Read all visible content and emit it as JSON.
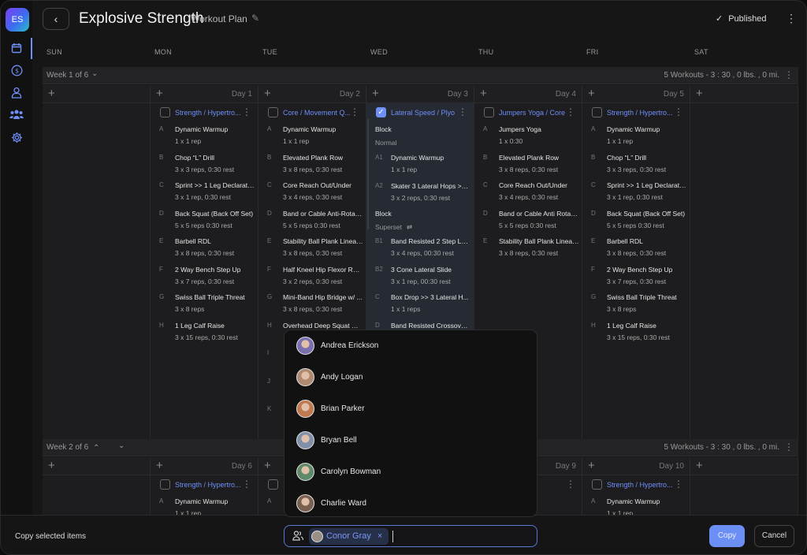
{
  "app": {
    "logo": "ES",
    "title": "Explosive Strength",
    "subtitle": "Workout Plan",
    "status": "Published"
  },
  "sidebar": {
    "items": [
      {
        "icon": "calendar-icon"
      },
      {
        "icon": "dollar-icon"
      },
      {
        "icon": "user-icon"
      },
      {
        "icon": "group-icon"
      },
      {
        "icon": "gear-icon"
      }
    ]
  },
  "days": [
    "SUN",
    "MON",
    "TUE",
    "WED",
    "THU",
    "FRI",
    "SAT"
  ],
  "weeks": [
    {
      "label": "Week 1 of 6",
      "summary": "5 Workouts - 3 : 30 ,  0 lbs. ,  0 mi.",
      "day_labels": [
        "",
        "Day 1",
        "Day 2",
        "Day 3",
        "Day 4",
        "Day 5",
        ""
      ]
    },
    {
      "label": "Week 2 of 6",
      "summary": "5 Workouts - 3 : 30 ,  0 lbs. ,  0 mi.",
      "day_labels": [
        "",
        "Day 6",
        "",
        "",
        "Day 9",
        "Day 10",
        ""
      ]
    }
  ],
  "week1": {
    "mon": {
      "name": "Strength / Hypertro...",
      "checked": false,
      "exercises": [
        {
          "letter": "A",
          "name": "Dynamic Warmup",
          "detail": "1 x 1 rep"
        },
        {
          "letter": "B",
          "name": "Chop “L” Drill",
          "detail": "3 x 3 reps,  0:30 rest"
        },
        {
          "letter": "C",
          "name": "Sprint >> 1 Leg Declarations",
          "detail": "3 x 1 rep,  0:30 rest"
        },
        {
          "letter": "D",
          "name": "Back Squat (Back Off Set)",
          "detail": "5 x 5 reps  0:30 rest"
        },
        {
          "letter": "E",
          "name": "Barbell RDL",
          "detail": "3 x 8 reps,  0:30 rest"
        },
        {
          "letter": "F",
          "name": "2 Way Bench Step Up",
          "detail": "3 x 7 reps,  0:30 rest"
        },
        {
          "letter": "G",
          "name": "Swiss Ball Triple Threat",
          "detail": "3 x 8 reps"
        },
        {
          "letter": "H",
          "name": "1 Leg Calf Raise",
          "detail": "3 x 15 reps,  0:30 rest"
        }
      ]
    },
    "tue": {
      "name": "Core / Movement Q...",
      "checked": false,
      "exercises": [
        {
          "letter": "A",
          "name": "Dynamic Warmup",
          "detail": "1 x 1 rep"
        },
        {
          "letter": "B",
          "name": "Elevated Plank Row",
          "detail": "3 x 8 reps,  0:30 rest"
        },
        {
          "letter": "C",
          "name": "Core Reach Out/Under",
          "detail": "3 x 4 reps,  0:30 rest"
        },
        {
          "letter": "D",
          "name": "Band or Cable Anti-Rotati...",
          "detail": "5 x 5 reps  0:30 rest"
        },
        {
          "letter": "E",
          "name": "Stability Ball Plank Linear ...",
          "detail": "3 x 8 reps,  0:30 rest"
        },
        {
          "letter": "F",
          "name": "Half Kneel Hip Flexor Rais...",
          "detail": "3 x 2 reps,  0:30 rest"
        },
        {
          "letter": "G",
          "name": "Mini-Band Hip Bridge w/ ...",
          "detail": "3 x 8 reps,  0:30 rest"
        },
        {
          "letter": "H",
          "name": "Overhead Deep Squat Mo...",
          "detail": ""
        },
        {
          "letter": "I",
          "name": "",
          "detail": ""
        },
        {
          "letter": "J",
          "name": "",
          "detail": ""
        },
        {
          "letter": "K",
          "name": "",
          "detail": ""
        }
      ]
    },
    "wed": {
      "name": "Lateral Speed / Plyo",
      "checked": true,
      "block1": {
        "title": "Block",
        "type": "Normal"
      },
      "block2": {
        "title": "Block",
        "type": "Superset"
      },
      "exercises": [
        {
          "letter": "A1",
          "name": "Dynamic Warmup",
          "detail": "1 x 1 rep"
        },
        {
          "letter": "A2",
          "name": "Skater 3 Lateral Hops >> ...",
          "detail": "3 x 2 reps,  0:30 rest"
        },
        {
          "letter": "B1",
          "name": "Band Resisted 2 Step Late...",
          "detail": "3 x 4 reps,  00:30 rest"
        },
        {
          "letter": "B2",
          "name": "3 Cone Lateral Slide",
          "detail": "3 x 1 rep,  00:30 rest"
        },
        {
          "letter": "C",
          "name": "Box Drop >> 3 Lateral H...",
          "detail": "1 x 1 reps"
        },
        {
          "letter": "D",
          "name": "Band Resisted Crossover...",
          "detail": ""
        }
      ]
    },
    "thu": {
      "name": "Jumpers Yoga / Core",
      "checked": false,
      "exercises": [
        {
          "letter": "A",
          "name": "Jumpers Yoga",
          "detail": "1 x  0:30"
        },
        {
          "letter": "B",
          "name": "Elevated Plank Row",
          "detail": "3 x 8 reps,  0:30 rest"
        },
        {
          "letter": "C",
          "name": "Core Reach Out/Under",
          "detail": "3 x 4 reps,  0:30 rest"
        },
        {
          "letter": "D",
          "name": "Band or Cable Anti Rotati...",
          "detail": "5 x 5 reps  0:30 rest"
        },
        {
          "letter": "E",
          "name": "Stability Ball Plank Linear ...",
          "detail": "3 x 8 reps,  0:30 rest"
        }
      ]
    },
    "fri": {
      "name": "Strength / Hypertro...",
      "checked": false,
      "exercises": [
        {
          "letter": "A",
          "name": "Dynamic Warmup",
          "detail": "1 x 1 rep"
        },
        {
          "letter": "B",
          "name": "Chop “L” Drill",
          "detail": "3 x 3 reps,  0:30 rest"
        },
        {
          "letter": "C",
          "name": "Sprint >> 1 Leg Declarations",
          "detail": "3 x 1 rep,  0:30 rest"
        },
        {
          "letter": "D",
          "name": "Back Squat (Back Off Set)",
          "detail": "5 x 5 reps  0:30 rest"
        },
        {
          "letter": "E",
          "name": "Barbell RDL",
          "detail": "3 x 8 reps,  0:30 rest"
        },
        {
          "letter": "F",
          "name": "2 Way Bench Step Up",
          "detail": "3 x 7 reps,  0:30 rest"
        },
        {
          "letter": "G",
          "name": "Swiss Ball Triple Threat",
          "detail": "3 x 8 reps"
        },
        {
          "letter": "H",
          "name": "1 Leg Calf Raise",
          "detail": "3 x 15 reps,  0:30 rest"
        }
      ]
    }
  },
  "week2": {
    "mon": {
      "name": "Strength / Hypertro...",
      "checked": false,
      "exercises": [
        {
          "letter": "A",
          "name": "Dynamic Warmup",
          "detail": "1 x 1 rep"
        }
      ]
    },
    "tue": {
      "name": "",
      "checked": false,
      "exercises": [
        {
          "letter": "A",
          "name": "",
          "detail": ""
        }
      ]
    },
    "thu": {
      "name": "/ Core",
      "checked": false,
      "exercises": []
    },
    "fri": {
      "name": "Strength / Hypertro...",
      "checked": false,
      "exercises": [
        {
          "letter": "A",
          "name": "Dynamic Warmup",
          "detail": "1 x 1 rep"
        }
      ]
    }
  },
  "dropdown": {
    "people": [
      {
        "name": "Andrea Erickson",
        "color": "#7c6fb0"
      },
      {
        "name": "Andy Logan",
        "color": "#b08a70"
      },
      {
        "name": "Brian Parker",
        "color": "#c07a50"
      },
      {
        "name": "Bryan Bell",
        "color": "#8090a8"
      },
      {
        "name": "Carolyn Bowman",
        "color": "#5f8a6a"
      },
      {
        "name": "Charlie Ward",
        "color": "#7a6050"
      }
    ]
  },
  "footer": {
    "label": "Copy selected items",
    "selected_chip": "Conor Gray",
    "input_value": "",
    "copy": "Copy",
    "cancel": "Cancel"
  },
  "colors": {
    "accent": "#6b8ff5",
    "background": "#161617"
  }
}
